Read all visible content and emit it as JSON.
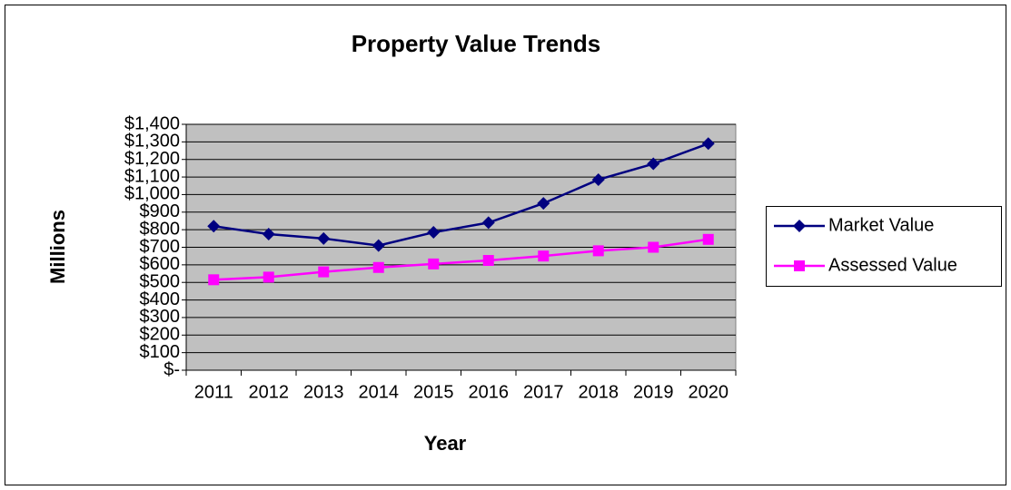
{
  "chart_data": {
    "type": "line",
    "title": "Property Value Trends",
    "x_label": "Year",
    "y_label": "Millions",
    "categories": [
      "2011",
      "2012",
      "2013",
      "2014",
      "2015",
      "2016",
      "2017",
      "2018",
      "2019",
      "2020"
    ],
    "series": [
      {
        "name": "Market Value",
        "color": "#000080",
        "marker": "diamond",
        "values": [
          820,
          775,
          750,
          710,
          785,
          840,
          950,
          1085,
          1175,
          1290
        ]
      },
      {
        "name": "Assessed Value",
        "color": "#ff00ff",
        "marker": "square",
        "values": [
          515,
          530,
          560,
          585,
          605,
          625,
          650,
          680,
          700,
          745
        ]
      }
    ],
    "ylim": [
      0,
      1400
    ],
    "yticks": [
      {
        "value": 0,
        "label": "$-"
      },
      {
        "value": 100,
        "label": "$100"
      },
      {
        "value": 200,
        "label": "$200"
      },
      {
        "value": 300,
        "label": "$300"
      },
      {
        "value": 400,
        "label": "$400"
      },
      {
        "value": 500,
        "label": "$500"
      },
      {
        "value": 600,
        "label": "$600"
      },
      {
        "value": 700,
        "label": "$700"
      },
      {
        "value": 800,
        "label": "$800"
      },
      {
        "value": 900,
        "label": "$900"
      },
      {
        "value": 1000,
        "label": "$1,000"
      },
      {
        "value": 1100,
        "label": "$1,100"
      },
      {
        "value": 1200,
        "label": "$1,200"
      },
      {
        "value": 1300,
        "label": "$1,300"
      },
      {
        "value": 1400,
        "label": "$1,400"
      }
    ],
    "grid": true,
    "legend": "right"
  }
}
